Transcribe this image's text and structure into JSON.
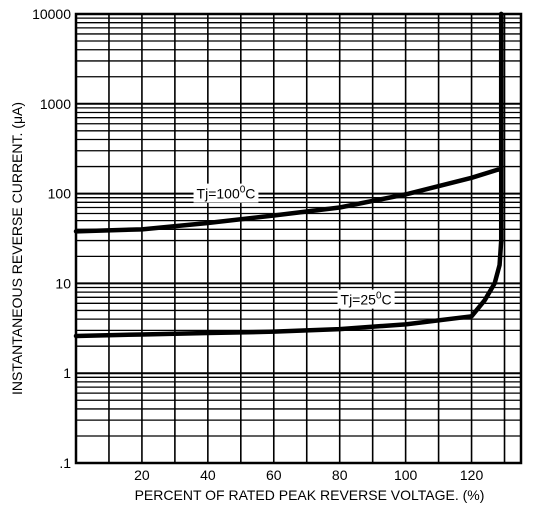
{
  "chart_data": {
    "type": "line",
    "y_scale": "log",
    "xlim": [
      0,
      135
    ],
    "ylim": [
      0.1,
      10000
    ],
    "grid": true,
    "xlabel": "PERCENT OF RATED PEAK REVERSE VOLTAGE. (%)",
    "ylabel": "INSTANTANEOUS REVERSE CURRENT. (μA)",
    "x_ticks": [
      {
        "value": 20,
        "label": "20"
      },
      {
        "value": 40,
        "label": "40"
      },
      {
        "value": 60,
        "label": "60"
      },
      {
        "value": 80,
        "label": "80"
      },
      {
        "value": 100,
        "label": "100"
      },
      {
        "value": 120,
        "label": "120"
      }
    ],
    "y_ticks": [
      {
        "value": 0.1,
        "label": ".1"
      },
      {
        "value": 1,
        "label": "1"
      },
      {
        "value": 10,
        "label": "10"
      },
      {
        "value": 100,
        "label": "100"
      },
      {
        "value": 1000,
        "label": "1000"
      },
      {
        "value": 10000,
        "label": "10000"
      }
    ],
    "series": [
      {
        "label_base": "Tj=100",
        "label_sup": "0",
        "label_unit": "C",
        "label_at": [
          45.5,
          100
        ],
        "points": [
          [
            0,
            38
          ],
          [
            20,
            40
          ],
          [
            40,
            47
          ],
          [
            60,
            57
          ],
          [
            80,
            70
          ],
          [
            100,
            98
          ],
          [
            120,
            150
          ],
          [
            128,
            185
          ],
          [
            129,
            185
          ],
          [
            129,
            10000
          ]
        ]
      },
      {
        "label_base": "Tj=25",
        "label_sup": "0",
        "label_unit": "C",
        "label_at": [
          88,
          6.6
        ],
        "points": [
          [
            0,
            2.6
          ],
          [
            20,
            2.7
          ],
          [
            40,
            2.8
          ],
          [
            60,
            2.9
          ],
          [
            80,
            3.1
          ],
          [
            100,
            3.5
          ],
          [
            120,
            4.3
          ],
          [
            124,
            6.5
          ],
          [
            127,
            10
          ],
          [
            128.5,
            16
          ],
          [
            129,
            30
          ],
          [
            129,
            10000
          ]
        ]
      }
    ]
  }
}
